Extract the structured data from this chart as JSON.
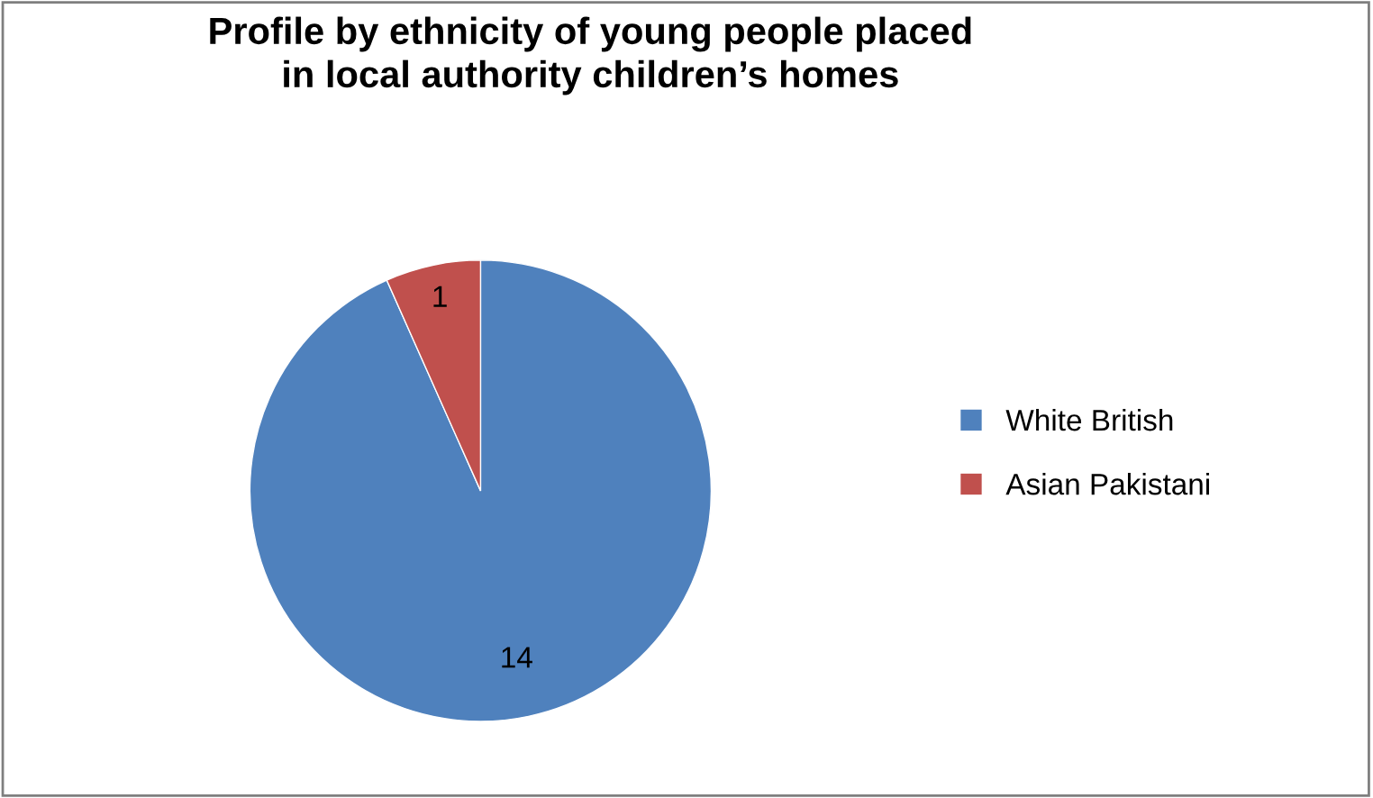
{
  "chart_data": {
    "type": "pie",
    "title": "Profile by ethnicity of young people placed\nin local authority children’s homes",
    "categories": [
      "White British",
      "Asian Pakistani"
    ],
    "values": [
      14,
      1
    ],
    "colors": [
      "#4f81bd",
      "#c0504d"
    ],
    "data_labels": true,
    "legend": "right"
  }
}
